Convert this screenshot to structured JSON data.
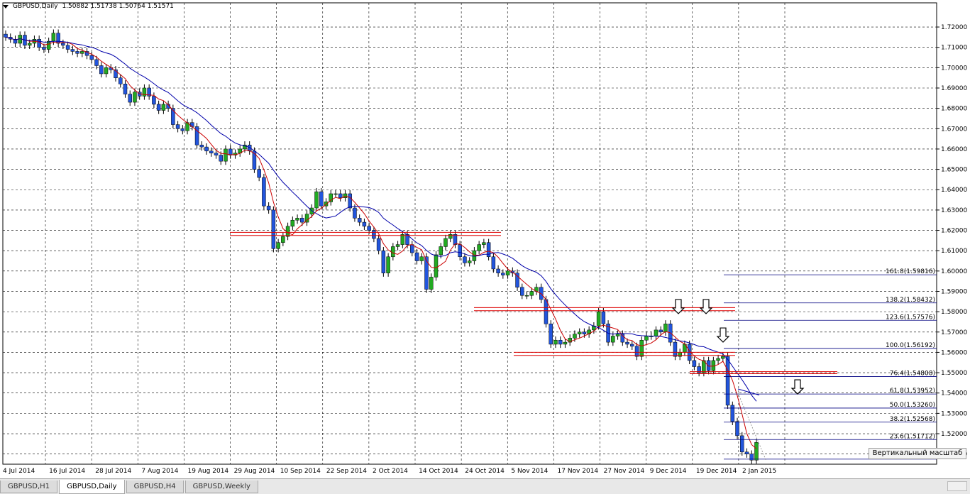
{
  "header": {
    "symbol": "GBPUSD,Daily",
    "ohlc": "1.50882 1.51738 1.50764 1.51571"
  },
  "tooltip": "Вертикальный масштаб",
  "tabs": [
    {
      "label": "GBPUSD,H1",
      "active": false
    },
    {
      "label": "GBPUSD,Daily",
      "active": true
    },
    {
      "label": "GBPUSD,H4",
      "active": false
    },
    {
      "label": "GBPUSD,Weekly",
      "active": false
    }
  ],
  "colors": {
    "bull": "#22aa22",
    "bear": "#2255dd",
    "ma_fast": "#cc0000",
    "ma_slow": "#0000aa",
    "resistance": "#dd0000",
    "fib": "#000080"
  },
  "chart_data": {
    "type": "candlestick",
    "yticks": [
      "1.72000",
      "1.71000",
      "1.70000",
      "1.69000",
      "1.68000",
      "1.67000",
      "1.66000",
      "1.65000",
      "1.64000",
      "1.63000",
      "1.62000",
      "1.61000",
      "1.60000",
      "1.59000",
      "1.58000",
      "1.57000",
      "1.56000",
      "1.55000",
      "1.54000",
      "1.53000",
      "1.52000",
      "1.51000"
    ],
    "ylim": [
      1.505,
      1.727
    ],
    "xlabels": [
      "4 Jul 2014",
      "16 Jul 2014",
      "28 Jul 2014",
      "7 Aug 2014",
      "19 Aug 2014",
      "29 Aug 2014",
      "10 Sep 2014",
      "22 Sep 2014",
      "2 Oct 2014",
      "14 Oct 2014",
      "24 Oct 2014",
      "5 Nov 2014",
      "17 Nov 2014",
      "27 Nov 2014",
      "9 Dec 2014",
      "19 Dec 2014",
      "2 Jan 2015"
    ],
    "closes": [
      1.715,
      1.714,
      1.712,
      1.716,
      1.711,
      1.712,
      1.714,
      1.71,
      1.709,
      1.713,
      1.717,
      1.712,
      1.711,
      1.709,
      1.708,
      1.707,
      1.708,
      1.706,
      1.704,
      1.701,
      1.697,
      1.7,
      1.699,
      1.695,
      1.692,
      1.687,
      1.683,
      1.688,
      1.686,
      1.69,
      1.686,
      1.682,
      1.679,
      1.682,
      1.68,
      1.672,
      1.67,
      1.669,
      1.673,
      1.671,
      1.662,
      1.661,
      1.659,
      1.658,
      1.657,
      1.654,
      1.66,
      1.657,
      1.658,
      1.66,
      1.662,
      1.659,
      1.65,
      1.646,
      1.632,
      1.63,
      1.611,
      1.614,
      1.617,
      1.622,
      1.625,
      1.626,
      1.624,
      1.628,
      1.631,
      1.639,
      1.632,
      1.634,
      1.638,
      1.638,
      1.636,
      1.638,
      1.631,
      1.626,
      1.624,
      1.622,
      1.62,
      1.616,
      1.61,
      1.599,
      1.607,
      1.612,
      1.613,
      1.618,
      1.613,
      1.609,
      1.605,
      1.607,
      1.591,
      1.597,
      1.608,
      1.612,
      1.616,
      1.618,
      1.613,
      1.607,
      1.604,
      1.605,
      1.61,
      1.613,
      1.614,
      1.607,
      1.601,
      1.599,
      1.598,
      1.6,
      1.599,
      1.592,
      1.588,
      1.588,
      1.59,
      1.592,
      1.586,
      1.574,
      1.564,
      1.566,
      1.564,
      1.565,
      1.567,
      1.569,
      1.57,
      1.569,
      1.571,
      1.573,
      1.58,
      1.574,
      1.565,
      1.568,
      1.569,
      1.565,
      1.564,
      1.563,
      1.558,
      1.566,
      1.568,
      1.568,
      1.571,
      1.57,
      1.574,
      1.565,
      1.558,
      1.56,
      1.564,
      1.556,
      1.553,
      1.55,
      1.556,
      1.551,
      1.556,
      1.557,
      1.558,
      1.534,
      1.526,
      1.519,
      1.511,
      1.51,
      1.507,
      1.5157
    ]
  },
  "resistance_labels": [],
  "fib_levels": [
    {
      "label": "161.8(1.59816)",
      "price": 1.59816
    },
    {
      "label": "138.2(1.58432)",
      "price": 1.58432
    },
    {
      "label": "123.6(1.57576)",
      "price": 1.57576
    },
    {
      "label": "100.0(1.56192)",
      "price": 1.56192
    },
    {
      "label": "76.4(1.54808)",
      "price": 1.54808
    },
    {
      "label": "61.8(1.53952)",
      "price": 1.53952
    },
    {
      "label": "50.0(1.53260)",
      "price": 1.5326
    },
    {
      "label": "38.2(1.52568)",
      "price": 1.52568
    },
    {
      "label": "23.6(1.51712)",
      "price": 1.51712
    }
  ]
}
